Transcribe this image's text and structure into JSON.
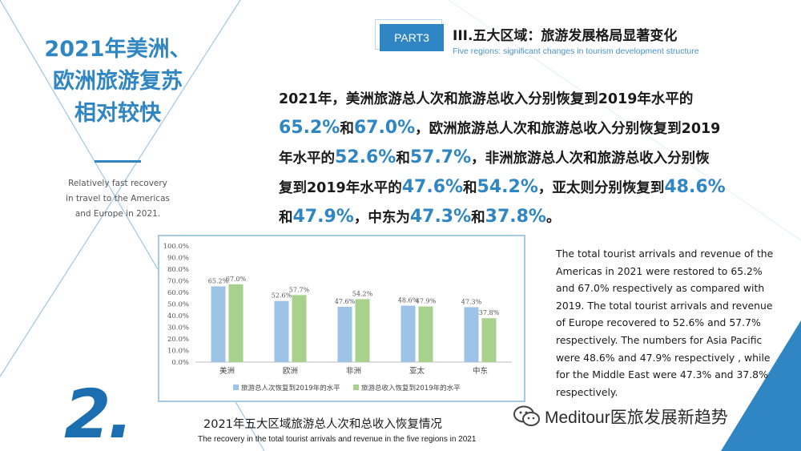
{
  "left": {
    "title_lines": [
      "2021年美洲、",
      "欧洲旅游复苏",
      "相对较快"
    ],
    "subtitle_lines": [
      "Relatively fast recovery",
      "in travel to the Americas",
      "and Europe in 2021."
    ],
    "section_number": "2."
  },
  "header": {
    "badge": "PART3",
    "title": "III.五大区域：旅游发展格局显著变化",
    "subtitle": "Five regions: significant changes in tourism development structure"
  },
  "paragraph": {
    "lines": [
      [
        {
          "t": "2021年，美洲旅游总人次和旅游总收入分别恢复到2019年水平的"
        }
      ],
      [
        {
          "t": "65.2%",
          "hl": true
        },
        {
          "t": "和"
        },
        {
          "t": "67.0%",
          "hl": true
        },
        {
          "t": "，欧洲旅游总人次和旅游总收入分别恢复到2019"
        }
      ],
      [
        {
          "t": "年水平的"
        },
        {
          "t": "52.6%",
          "hl": true
        },
        {
          "t": "和"
        },
        {
          "t": "57.7%",
          "hl": true
        },
        {
          "t": "，非洲旅游总人次和旅游总收入分别恢"
        }
      ],
      [
        {
          "t": "复到2019年水平的"
        },
        {
          "t": "47.6%",
          "hl": true
        },
        {
          "t": "和"
        },
        {
          "t": "54.2%",
          "hl": true
        },
        {
          "t": "，亚太则分别恢复到"
        },
        {
          "t": "48.6%",
          "hl": true
        }
      ],
      [
        {
          "t": "和"
        },
        {
          "t": "47.9%",
          "hl": true
        },
        {
          "t": "，中东为"
        },
        {
          "t": "47.3%",
          "hl": true
        },
        {
          "t": "和"
        },
        {
          "t": "37.8%",
          "hl": true
        },
        {
          "t": "。"
        }
      ]
    ]
  },
  "chart_data": {
    "type": "bar",
    "categories": [
      "美洲",
      "欧洲",
      "非洲",
      "亚太",
      "中东"
    ],
    "series": [
      {
        "name": "旅游总人次恢复到2019年的水平",
        "values": [
          65.2,
          52.6,
          47.6,
          48.6,
          47.3
        ],
        "labels": [
          "65.2%",
          "52.6%",
          "47.6%",
          "48.6%",
          "47.3%"
        ],
        "color": "#9dc3e6"
      },
      {
        "name": "旅游总收入恢复到2019年的水平",
        "values": [
          67.0,
          57.7,
          54.2,
          47.9,
          37.8
        ],
        "labels": [
          "67.0%",
          "57.7%",
          "54.2%",
          "47.9%",
          "37.8%"
        ],
        "color": "#a9d18e"
      }
    ],
    "y_ticks": [
      "0.0%",
      "10.0%",
      "20.0%",
      "30.0%",
      "40.0%",
      "50.0%",
      "60.0%",
      "70.0%",
      "80.0%",
      "90.0%",
      "100.0%"
    ],
    "ylim": [
      0,
      100
    ],
    "grid": false,
    "legend_position": "bottom"
  },
  "chart_caption": {
    "cn": "2021年五大区域旅游总人次和总收入恢复情况",
    "en": "The recovery in the total tourist arrivals and revenue in the five regions in 2021"
  },
  "english_paragraph": {
    "lines": [
      "The total tourist arrivals and revenue of the",
      "Americas in 2021 were restored to 65.2%",
      "and 67.0% respectively as compared with",
      "2019. The total tourist arrivals and revenue",
      "of Europe recovered to 52.6% and 57.7%",
      "respectively. The numbers for Asia Pacific",
      "were 48.6% and 47.9% respectively , while",
      "for the Middle East were 47.3% and 37.8%",
      "respectively."
    ]
  },
  "watermark": {
    "text": "Meditour医旅发展新趋势",
    "icon": "wechat-icon"
  },
  "colors": {
    "accent": "#2f86c2",
    "dark_accent": "#1b6fb0",
    "series_blue": "#9dc3e6",
    "series_green": "#a9d18e"
  }
}
